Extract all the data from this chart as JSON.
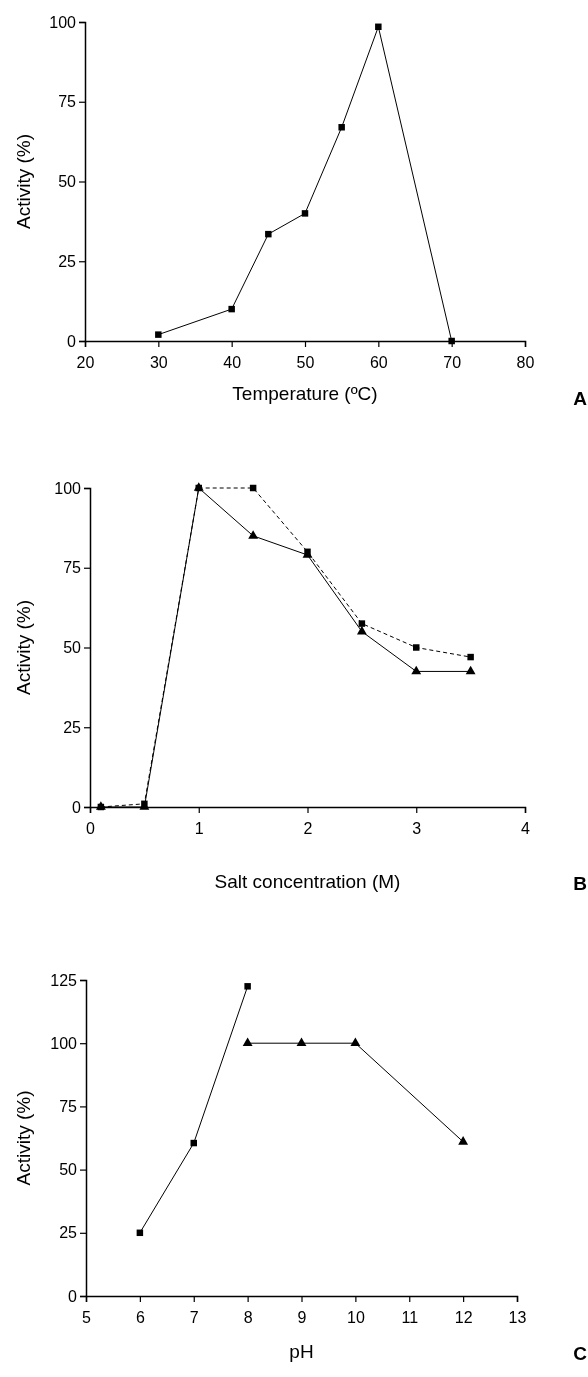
{
  "chart_data": [
    {
      "type": "line",
      "xlabel": "Temperature (ºC)",
      "ylabel": "Activity (%)",
      "annotations": [
        "A"
      ],
      "xlim": [
        20,
        80
      ],
      "xticks": [
        20,
        30,
        40,
        50,
        60,
        70,
        80
      ],
      "ylim": [
        0,
        100
      ],
      "yticks": [
        0,
        25,
        50,
        75,
        100
      ],
      "marker": "square",
      "line_style": "solid",
      "series": [
        {
          "color": "#000000",
          "x": [
            30,
            40,
            45,
            50,
            55,
            60,
            70
          ],
          "values": [
            2,
            10,
            33.5,
            40,
            67,
            98.5,
            0
          ]
        }
      ]
    },
    {
      "type": "line",
      "xlabel": "Salt concentration (M)",
      "ylabel": "Activity (%)",
      "annotations": [
        "B"
      ],
      "xlim": [
        0,
        4
      ],
      "xticks": [
        0,
        1,
        2,
        3,
        4
      ],
      "ylim": [
        0,
        100
      ],
      "yticks": [
        0,
        25,
        50,
        75,
        100
      ],
      "series": [
        {
          "color": "#000000",
          "x": [
            0.1,
            0.5,
            1,
            1.5,
            2,
            2.5,
            3,
            3.5
          ],
          "values": [
            0,
            1,
            100,
            100,
            80,
            57.5,
            50,
            47
          ],
          "marker": "square",
          "line_style": "dashed"
        },
        {
          "color": "#000000",
          "x": [
            0.1,
            0.5,
            1,
            1.5,
            2,
            2.5,
            3,
            3.5
          ],
          "values": [
            0,
            0,
            100,
            85,
            79,
            55,
            42.5,
            42.5
          ],
          "marker": "triangle",
          "line_style": "solid"
        }
      ]
    },
    {
      "type": "line",
      "xlabel": "pH",
      "ylabel": "Activity (%)",
      "annotations": [
        "C"
      ],
      "xlim": [
        5,
        13
      ],
      "xticks": [
        5,
        6,
        7,
        8,
        9,
        10,
        11,
        12,
        13
      ],
      "ylim": [
        0,
        125
      ],
      "yticks": [
        0,
        25,
        50,
        75,
        100,
        125
      ],
      "series": [
        {
          "color": "#000000",
          "x": [
            6,
            7,
            8
          ],
          "values": [
            25,
            60.5,
            122.5
          ],
          "marker": "square",
          "line_style": "solid"
        },
        {
          "color": "#000000",
          "x": [
            8,
            9,
            10,
            12
          ],
          "values": [
            100,
            100,
            100,
            61
          ],
          "marker": "triangle",
          "line_style": "solid"
        }
      ]
    }
  ]
}
